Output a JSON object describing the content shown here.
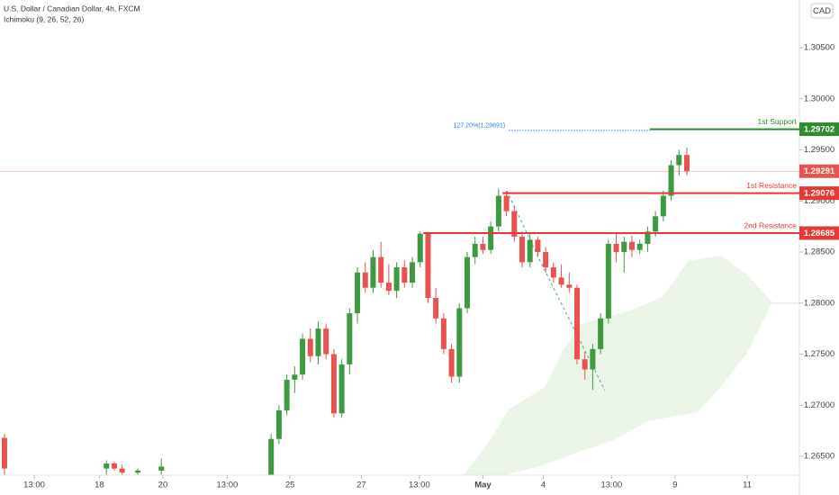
{
  "chart_data": {
    "type": "candlestick",
    "title": "U.S. Dollar / Canadian Dollar, 4h, FXCM",
    "subtitle": "Ichimoku (9, 26, 52, 26)",
    "currency": "CAD",
    "up_color": "#3d9a40",
    "down_color": "#e8534f",
    "x": [
      0,
      13,
      14,
      15,
      17,
      20,
      34,
      35,
      36,
      37,
      38,
      39,
      40,
      41,
      42,
      43,
      44,
      45,
      46,
      47,
      48,
      49,
      50,
      51,
      52,
      53,
      54,
      55,
      56,
      57,
      58,
      59,
      60,
      61,
      62,
      63,
      64,
      65,
      66,
      67,
      68,
      69,
      70,
      71,
      72,
      73,
      74,
      75,
      76,
      77,
      78,
      79,
      80,
      81,
      82,
      83,
      84,
      85,
      86,
      87
    ],
    "open": [
      1.2668,
      1.2638,
      1.2643,
      1.2638,
      1.2634,
      1.2636,
      1.2632,
      1.2667,
      1.2695,
      1.2725,
      1.273,
      1.2765,
      1.2748,
      1.2775,
      1.275,
      1.2692,
      1.274,
      1.279,
      1.283,
      1.2815,
      1.2845,
      1.282,
      1.2812,
      1.2835,
      1.282,
      1.284,
      1.2868,
      1.2805,
      1.2785,
      1.2755,
      1.2728,
      1.2795,
      1.2845,
      1.2858,
      1.2852,
      1.2875,
      1.2905,
      1.289,
      1.2865,
      1.284,
      1.2862,
      1.285,
      1.2835,
      1.2825,
      1.2818,
      1.2815,
      1.2745,
      1.2735,
      1.2755,
      1.2785,
      1.2858,
      1.285,
      1.286,
      1.2852,
      1.2858,
      1.287,
      1.2885,
      1.2905,
      1.2935,
      1.2945
    ],
    "high": [
      1.2672,
      1.2646,
      1.2645,
      1.2642,
      1.2638,
      1.2648,
      1.2672,
      1.27,
      1.273,
      1.2738,
      1.277,
      1.2775,
      1.2782,
      1.278,
      1.2755,
      1.2745,
      1.2795,
      1.2835,
      1.284,
      1.2852,
      1.286,
      1.2838,
      1.284,
      1.2842,
      1.2845,
      1.287,
      1.287,
      1.2815,
      1.279,
      1.276,
      1.28,
      1.285,
      1.2865,
      1.2865,
      1.288,
      1.2912,
      1.291,
      1.2895,
      1.287,
      1.2868,
      1.2865,
      1.2855,
      1.284,
      1.2838,
      1.283,
      1.2818,
      1.2752,
      1.276,
      1.279,
      1.2862,
      1.2868,
      1.2865,
      1.2866,
      1.2862,
      1.2875,
      1.289,
      1.291,
      1.294,
      1.295,
      1.2952
    ],
    "low": [
      1.2632,
      1.2632,
      1.2636,
      1.2632,
      1.2632,
      1.2632,
      1.2632,
      1.2662,
      1.269,
      1.2712,
      1.2725,
      1.2742,
      1.274,
      1.2745,
      1.2688,
      1.2688,
      1.273,
      1.278,
      1.281,
      1.281,
      1.2815,
      1.2808,
      1.2805,
      1.2815,
      1.2815,
      1.2835,
      1.28,
      1.278,
      1.275,
      1.2722,
      1.2722,
      1.279,
      1.2838,
      1.2848,
      1.2848,
      1.287,
      1.2885,
      1.286,
      1.2835,
      1.2835,
      1.2845,
      1.283,
      1.282,
      1.2815,
      1.281,
      1.274,
      1.2725,
      1.2715,
      1.275,
      1.278,
      1.284,
      1.283,
      1.2845,
      1.2848,
      1.285,
      1.2865,
      1.288,
      1.29,
      1.2925,
      1.2925
    ],
    "close": [
      1.2638,
      1.2643,
      1.2638,
      1.2634,
      1.2636,
      1.264,
      1.2667,
      1.2695,
      1.2725,
      1.273,
      1.2765,
      1.2748,
      1.2775,
      1.275,
      1.2692,
      1.274,
      1.279,
      1.283,
      1.2815,
      1.2845,
      1.282,
      1.2812,
      1.2835,
      1.282,
      1.284,
      1.2868,
      1.2805,
      1.2785,
      1.2755,
      1.2728,
      1.2795,
      1.2845,
      1.2858,
      1.2852,
      1.2875,
      1.2905,
      1.289,
      1.2865,
      1.284,
      1.2862,
      1.285,
      1.2835,
      1.2825,
      1.2818,
      1.2815,
      1.2745,
      1.2735,
      1.2755,
      1.2785,
      1.2858,
      1.285,
      1.286,
      1.2852,
      1.2858,
      1.287,
      1.2885,
      1.2905,
      1.2935,
      1.2945,
      1.2929
    ],
    "ylim": [
      1.26315,
      1.30967
    ],
    "xlim": [
      -0.57,
      101.35
    ],
    "yticks": [
      {
        "value": 1.265,
        "label": "1.26500"
      },
      {
        "value": 1.27,
        "label": "1.27000"
      },
      {
        "value": 1.275,
        "label": "1.27500"
      },
      {
        "value": 1.28,
        "label": "1.28000"
      },
      {
        "value": 1.285,
        "label": "1.28500"
      },
      {
        "value": 1.29,
        "label": "1.29000"
      },
      {
        "value": 1.295,
        "label": "1.29500"
      },
      {
        "value": 1.3,
        "label": "1.30000"
      },
      {
        "value": 1.305,
        "label": "1.30500"
      }
    ],
    "xticks": [
      {
        "value": 3.8,
        "label": "13:00"
      },
      {
        "value": 12.1,
        "label": "18"
      },
      {
        "value": 20.2,
        "label": "20"
      },
      {
        "value": 28.4,
        "label": "13:00"
      },
      {
        "value": 36.4,
        "label": "25"
      },
      {
        "value": 45.5,
        "label": "27"
      },
      {
        "value": 52.9,
        "label": "13:00"
      },
      {
        "value": 61,
        "label": "May"
      },
      {
        "value": 68.7,
        "label": "4"
      },
      {
        "value": 77.4,
        "label": "13:00"
      },
      {
        "value": 85.5,
        "label": "9"
      },
      {
        "value": 94.7,
        "label": "11"
      }
    ],
    "levels": [
      {
        "name": "1st Support",
        "value": 1.29702,
        "color": "#2e8b2e",
        "x_start": 82.3
      },
      {
        "name": "1st Resistance",
        "value": 1.29076,
        "color": "#e53935",
        "x_start": 63.5
      },
      {
        "name": "2nd Resistance",
        "value": 1.28685,
        "color": "#e53935",
        "x_start": 53.4
      }
    ],
    "fib": {
      "label": "127.20%(1.29691)",
      "value": 1.29691,
      "x_start": 64.3,
      "x_end": 82.3,
      "color": "#2f7fd6"
    },
    "last_price": {
      "value": 1.29291,
      "color": "#e8534f"
    }
  }
}
